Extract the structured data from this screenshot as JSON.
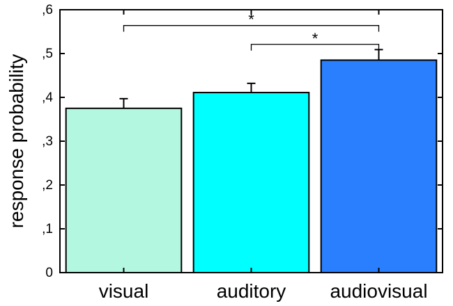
{
  "chart_data": {
    "type": "bar",
    "categories": [
      "visual",
      "auditory",
      "audiovisual"
    ],
    "values": [
      0.375,
      0.411,
      0.485
    ],
    "error_upper": [
      0.397,
      0.432,
      0.509
    ],
    "colors": [
      "#b3f7e1",
      "#00ffff",
      "#2a7fff"
    ],
    "ylabel": "response probability",
    "ylim": [
      0,
      0.6
    ],
    "yticks": [
      0,
      0.1,
      0.2,
      0.3,
      0.4,
      0.5,
      0.6
    ],
    "ytick_labels": [
      "0",
      ",1",
      ",2",
      ",3",
      ",4",
      ",5",
      ",6"
    ],
    "grid": false,
    "significance": [
      {
        "from": "visual",
        "to": "audiovisual",
        "label": "*",
        "level": 0.564
      },
      {
        "from": "auditory",
        "to": "audiovisual",
        "label": "*",
        "level": 0.521
      }
    ]
  }
}
